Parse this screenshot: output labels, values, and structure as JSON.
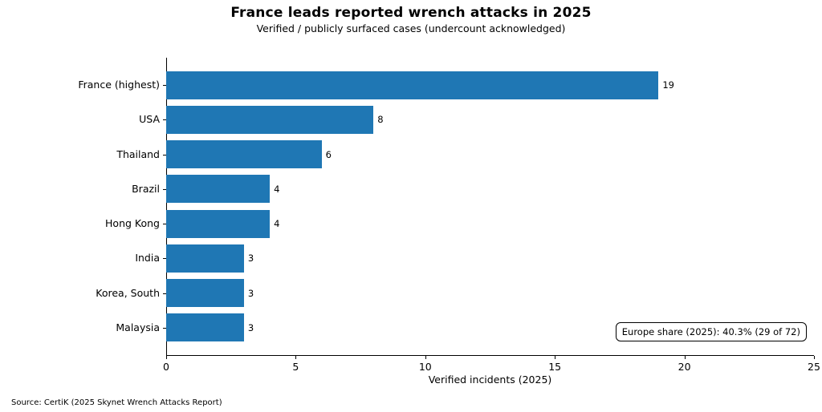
{
  "title": "France leads reported wrench attacks in 2025",
  "subtitle": "Verified / publicly surfaced cases (undercount acknowledged)",
  "source_note": "Source: CertiK (2025 Skynet Wrench Attacks Report)",
  "annotation_label": "Europe share (2025): 40.3% (29 of 72)",
  "chart_data": {
    "type": "bar",
    "orientation": "horizontal",
    "title": "France leads reported wrench attacks in 2025",
    "subtitle": "Verified / publicly surfaced cases (undercount acknowledged)",
    "categories": [
      "France (highest)",
      "USA",
      "Thailand",
      "Brazil",
      "Hong Kong",
      "India",
      "Korea, South",
      "Malaysia"
    ],
    "values": [
      19,
      8,
      6,
      4,
      4,
      3,
      3,
      3
    ],
    "xlabel": "Verified incidents (2025)",
    "ylabel": "",
    "xlim": [
      0,
      25
    ],
    "xticks": [
      0,
      5,
      10,
      15,
      20,
      25
    ],
    "bar_color": "#1f77b4",
    "grid": false,
    "legend": null,
    "annotation": "Europe share (2025): 40.3% (29 of 72)",
    "source": "Source: CertiK (2025 Skynet Wrench Attacks Report)"
  }
}
